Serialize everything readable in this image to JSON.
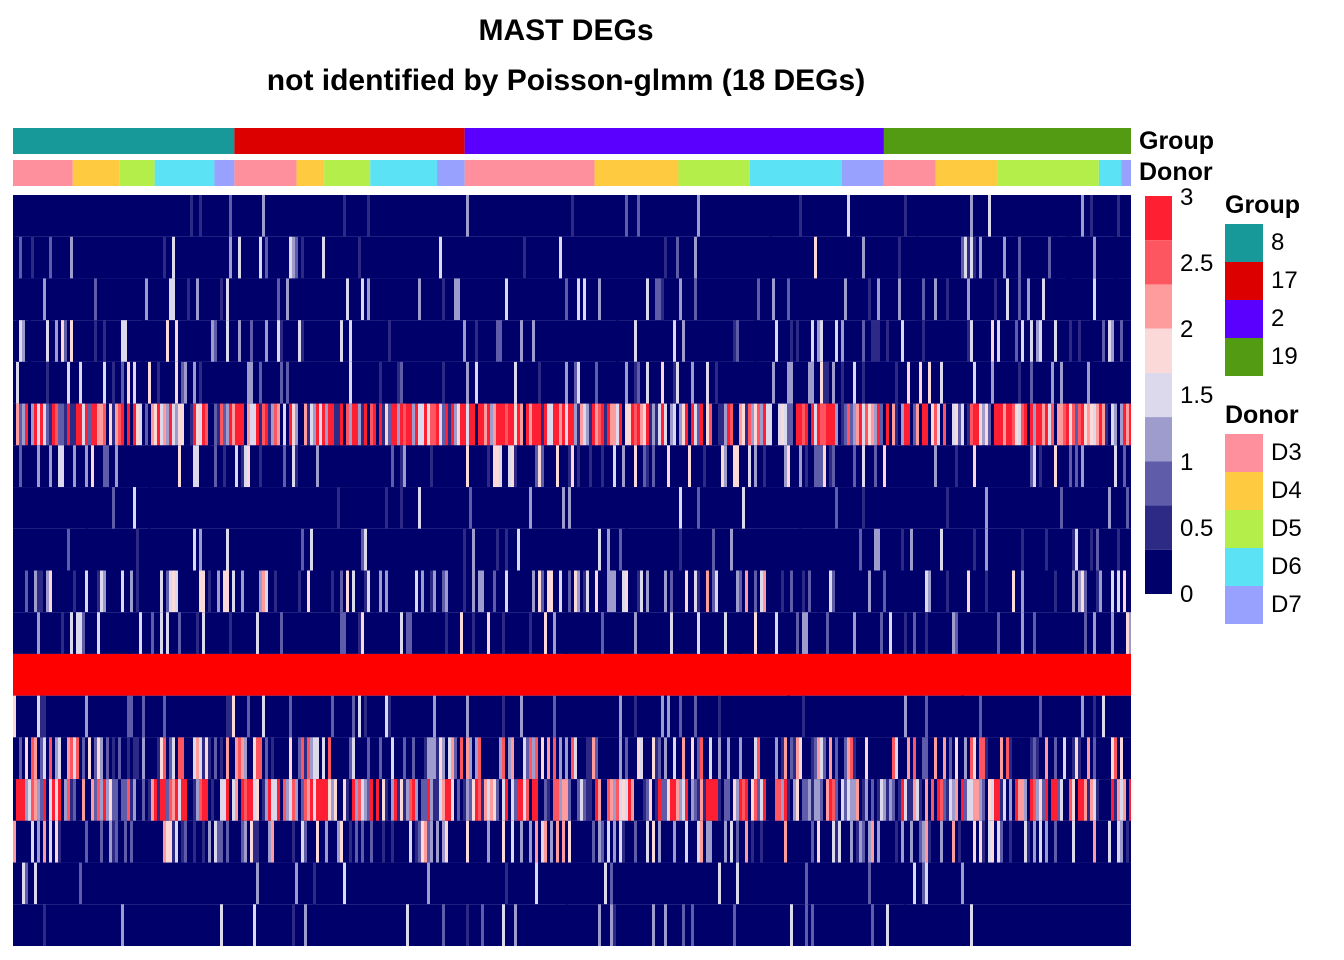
{
  "title": {
    "line1": "MAST DEGs",
    "line2": "not identified by Poisson-glmm (18 DEGs)"
  },
  "annotation_labels": {
    "group": "Group",
    "donor": "Donor"
  },
  "chart_data": {
    "type": "heatmap",
    "title": "MAST DEGs not identified by Poisson-glmm (18 DEGs)",
    "n_rows": 18,
    "value_range": [
      0,
      3
    ],
    "color_scale": {
      "ticks": [
        "3",
        "2.5",
        "2",
        "1.5",
        "1",
        "0.5",
        "0"
      ],
      "bins": [
        "#fe1f32",
        "#fe5660",
        "#fe9b9d",
        "#fcd9d9",
        "#dcd9ec",
        "#9e9ccc",
        "#5f5caa",
        "#2d2a86",
        "#00006b"
      ]
    },
    "columns_by_group": [
      {
        "group": "8",
        "fraction": 0.198,
        "donors": [
          [
            "D3",
            0.27
          ],
          [
            "D4",
            0.21
          ],
          [
            "D5",
            0.16
          ],
          [
            "D6",
            0.27
          ],
          [
            "D7",
            0.09
          ]
        ]
      },
      {
        "group": "17",
        "fraction": 0.206,
        "donors": [
          [
            "D3",
            0.27
          ],
          [
            "D4",
            0.12
          ],
          [
            "D5",
            0.2
          ],
          [
            "D6",
            0.29
          ],
          [
            "D7",
            0.12
          ]
        ]
      },
      {
        "group": "2",
        "fraction": 0.375,
        "donors": [
          [
            "D3",
            0.31
          ],
          [
            "D4",
            0.2
          ],
          [
            "D5",
            0.17
          ],
          [
            "D6",
            0.22
          ],
          [
            "D7",
            0.1
          ]
        ]
      },
      {
        "group": "19",
        "fraction": 0.221,
        "donors": [
          [
            "D3",
            0.21
          ],
          [
            "D4",
            0.25
          ],
          [
            "D5",
            0.41
          ],
          [
            "D6",
            0.09
          ],
          [
            "D7",
            0.04
          ]
        ]
      }
    ],
    "row_mean_expression": [
      0.15,
      0.25,
      0.3,
      0.4,
      0.5,
      2.2,
      0.55,
      0.15,
      0.2,
      0.7,
      0.3,
      3,
      0.25,
      1.2,
      2.0,
      0.9,
      0.2,
      0.15
    ]
  },
  "legends": {
    "group": {
      "title": "Group",
      "items": [
        {
          "label": "8",
          "color": "#17999a"
        },
        {
          "label": "17",
          "color": "#dc0000"
        },
        {
          "label": "2",
          "color": "#5a00ff"
        },
        {
          "label": "19",
          "color": "#529b12"
        }
      ]
    },
    "donor": {
      "title": "Donor",
      "items": [
        {
          "label": "D3",
          "color": "#fe8f9c"
        },
        {
          "label": "D4",
          "color": "#fdca40"
        },
        {
          "label": "D5",
          "color": "#b4ee4b"
        },
        {
          "label": "D6",
          "color": "#5ce2f5"
        },
        {
          "label": "D7",
          "color": "#98a1fd"
        }
      ]
    }
  }
}
